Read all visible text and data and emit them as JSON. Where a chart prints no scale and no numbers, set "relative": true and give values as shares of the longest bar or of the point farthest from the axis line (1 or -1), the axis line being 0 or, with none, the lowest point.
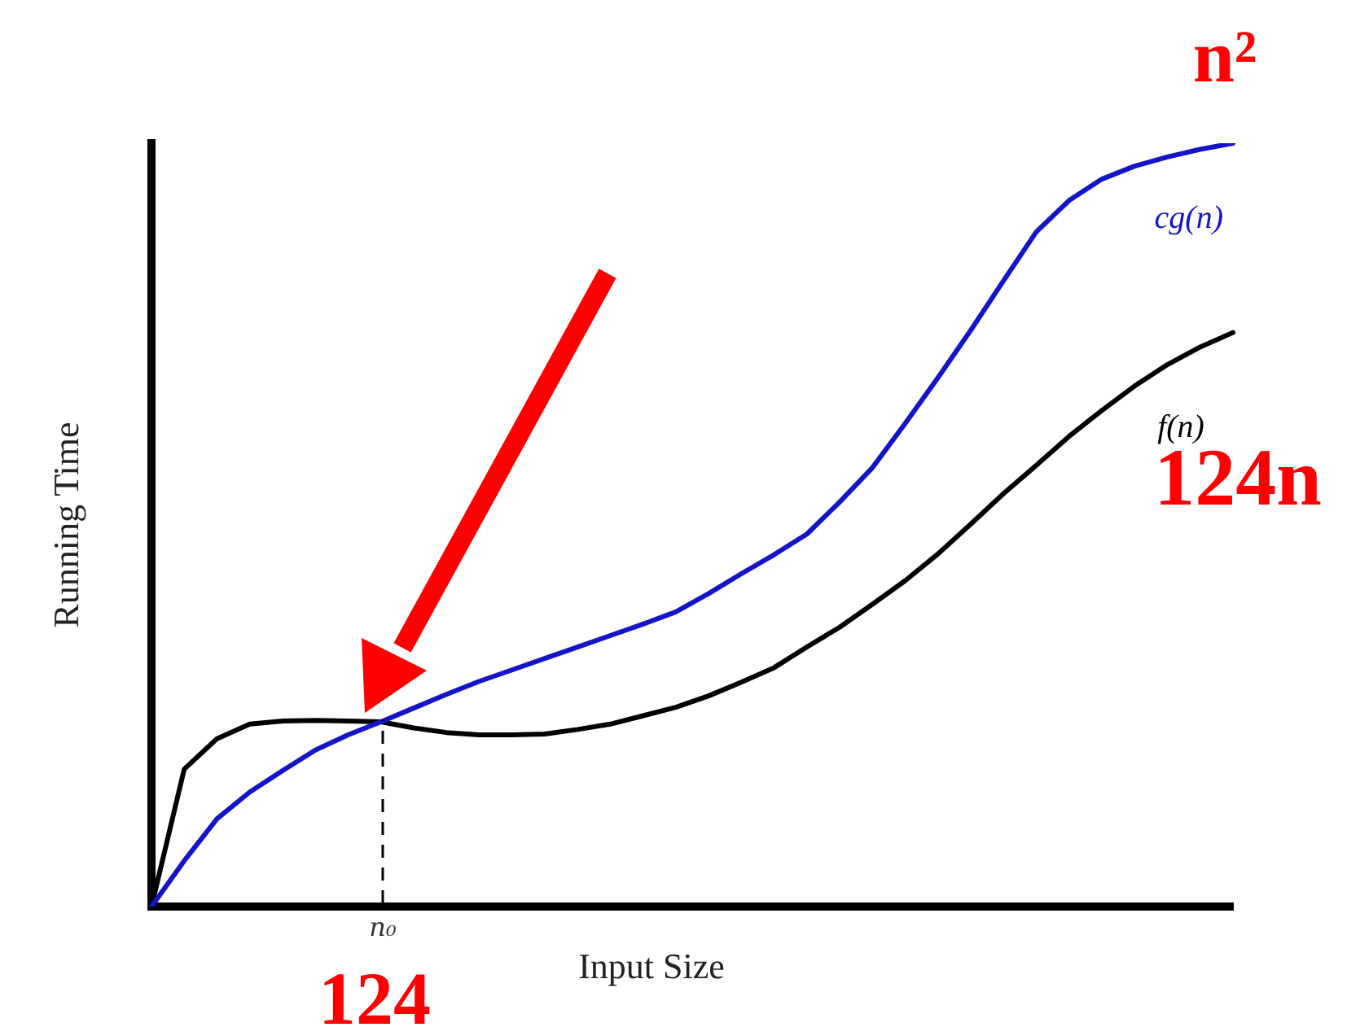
{
  "chart_data": {
    "type": "line",
    "relative": true,
    "xlabel": "Input Size",
    "ylabel": "Running Time",
    "marker": "none",
    "line_style": "solid",
    "legend": false,
    "categories": [
      null,
      null,
      null,
      null,
      null,
      null,
      null,
      null,
      null,
      null,
      null,
      null,
      null,
      null,
      null,
      null,
      null,
      null,
      null,
      null,
      null,
      null,
      null,
      null,
      null,
      null,
      null,
      null,
      null,
      null,
      null,
      null,
      null,
      null
    ],
    "series": [
      {
        "name": "cg(n)",
        "color": "#1414c8",
        "values": [
          0,
          0.06,
          0.115,
          0.15,
          0.178,
          0.205,
          0.225,
          0.242,
          0.26,
          0.278,
          0.295,
          0.31,
          0.325,
          0.34,
          0.355,
          0.37,
          0.386,
          0.41,
          0.436,
          0.461,
          0.488,
          0.53,
          0.575,
          0.633,
          0.693,
          0.755,
          0.82,
          0.884,
          0.925,
          0.953,
          0.97,
          0.982,
          0.992,
          1
        ]
      },
      {
        "name": "f(n)",
        "color": "#000000",
        "values": [
          0,
          0.18,
          0.22,
          0.239,
          0.243,
          0.244,
          0.243,
          0.242,
          0.234,
          0.228,
          0.225,
          0.225,
          0.226,
          0.232,
          0.239,
          0.25,
          0.261,
          0.276,
          0.294,
          0.313,
          0.34,
          0.366,
          0.396,
          0.427,
          0.462,
          0.501,
          0.541,
          0.578,
          0.616,
          0.65,
          0.682,
          0.71,
          0.733,
          0.752
        ]
      }
    ],
    "annotations": [
      "n²",
      "124n",
      "124",
      "n₀"
    ]
  }
}
